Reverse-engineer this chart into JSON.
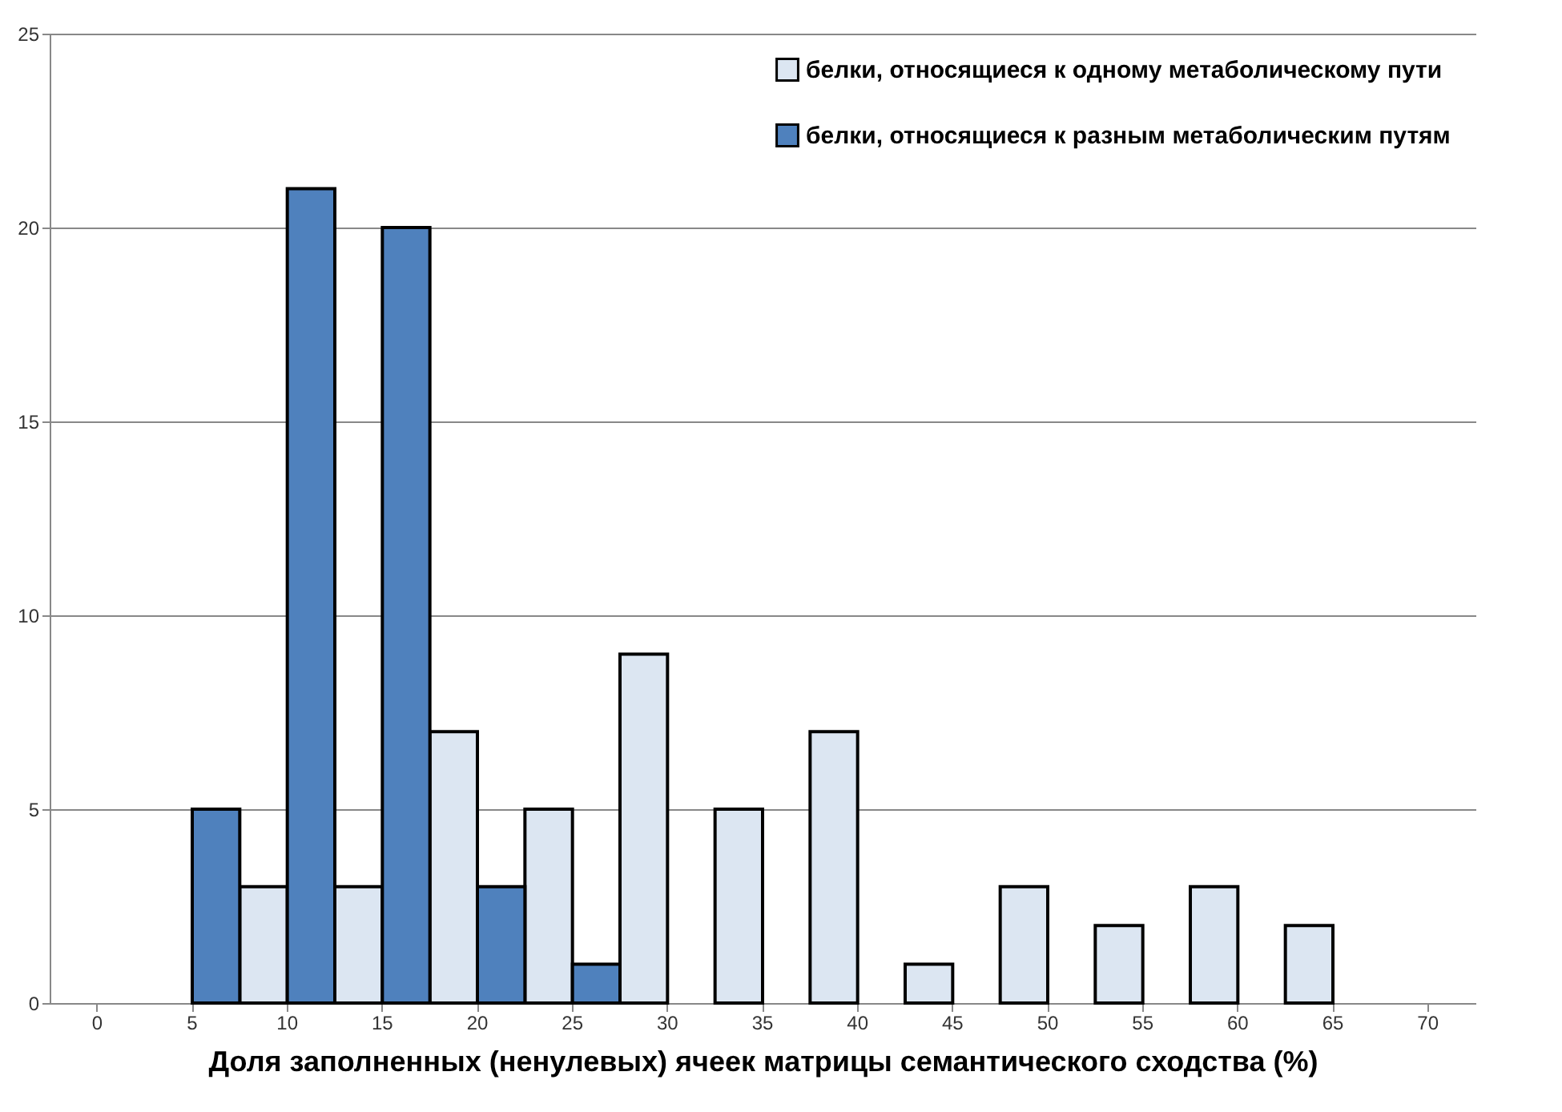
{
  "chart_data": {
    "type": "bar",
    "xlabel": "Доля заполненных (ненулевых) ячеек матрицы семантического сходства (%)",
    "categories": [
      "0",
      "5",
      "10",
      "15",
      "20",
      "25",
      "30",
      "35",
      "40",
      "45",
      "50",
      "55",
      "60",
      "65",
      "70"
    ],
    "series": [
      {
        "name": "белки, относящиеся к одному метаболическому пути",
        "color": "#dce6f2",
        "values": [
          0,
          0,
          3,
          3,
          7,
          5,
          9,
          5,
          7,
          1,
          3,
          2,
          3,
          2,
          0
        ]
      },
      {
        "name": "белки, относящиеся к разным метаболическим путям",
        "color": "#4f81bd",
        "values": [
          0,
          5,
          21,
          20,
          3,
          1,
          0,
          0,
          0,
          0,
          0,
          0,
          0,
          0,
          0
        ]
      }
    ],
    "ylim": [
      0,
      25
    ],
    "yticks": [
      0,
      5,
      10,
      15,
      20,
      25
    ],
    "grid": "y",
    "legend": "top right"
  }
}
